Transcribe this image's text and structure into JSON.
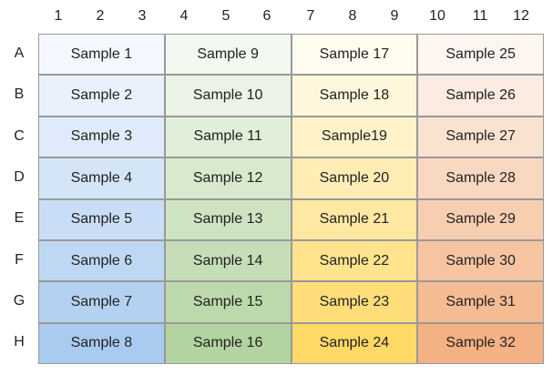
{
  "columns": [
    "1",
    "2",
    "3",
    "4",
    "5",
    "6",
    "7",
    "8",
    "9",
    "10",
    "11",
    "12"
  ],
  "rows": [
    "A",
    "B",
    "C",
    "D",
    "E",
    "F",
    "G",
    "H"
  ],
  "groups": [
    {
      "color_top": "#f4f8fe",
      "color_bottom": "#a9cbf0",
      "samples": [
        "Sample 1",
        "Sample 2",
        "Sample 3",
        "Sample 4",
        "Sample 5",
        "Sample 6",
        "Sample 7",
        "Sample 8"
      ]
    },
    {
      "color_top": "#f3f8f0",
      "color_bottom": "#b3d4a0",
      "samples": [
        "Sample 9",
        "Sample 10",
        "Sample 11",
        "Sample 12",
        "Sample 13",
        "Sample 14",
        "Sample 15",
        "Sample 16"
      ]
    },
    {
      "color_top": "#fffcf0",
      "color_bottom": "#ffd966",
      "samples": [
        "Sample 17",
        "Sample 18",
        "Sample19",
        "Sample 20",
        "Sample 21",
        "Sample 22",
        "Sample 23",
        "Sample 24"
      ]
    },
    {
      "color_top": "#fdf5ef",
      "color_bottom": "#f4b183",
      "samples": [
        "Sample 25",
        "Sample 26",
        "Sample 27",
        "Sample 28",
        "Sample 29",
        "Sample 30",
        "Sample 31",
        "Sample 32"
      ]
    }
  ]
}
